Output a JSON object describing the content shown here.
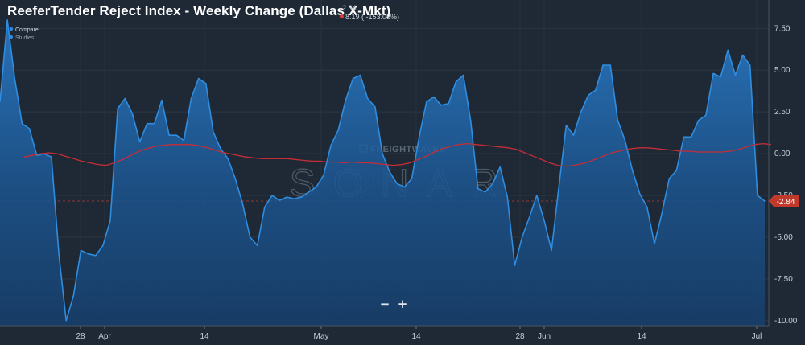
{
  "title": "ReeferTender Reject Index - Weekly Change (Dallas X-Mkt)",
  "readout": {
    "value": "-2.84",
    "change": "8.19 ( -153.08%)"
  },
  "legend": {
    "compare_label": "Compare...",
    "studies_label": "Studies"
  },
  "zoom": {
    "out_label": "−",
    "in_label": "+"
  },
  "watermark": {
    "brand": "FREIGHTWAVES",
    "product": "SONAR"
  },
  "last_value_badge": "-2.84",
  "colors": {
    "background": "#1f2935",
    "series": "#2e8de0",
    "moving_average": "#c62d36",
    "badge": "#c0392b"
  },
  "chart_data": {
    "type": "area",
    "title": "ReeferTender Reject Index - Weekly Change (Dallas X-Mkt)",
    "x_ticks": [
      "28",
      "Apr",
      "14",
      "May",
      "14",
      "28",
      "Jun",
      "14",
      "Jul"
    ],
    "y_ticks": [
      "7.50",
      "5.00",
      "2.50",
      "0.00",
      "-2.50",
      "-5.00",
      "-7.50",
      "-10.00"
    ],
    "y_tick_values": [
      7.5,
      5,
      2.5,
      0,
      -2.5,
      -5,
      -7.5,
      -10
    ],
    "ylim": [
      -10.3,
      9.2
    ],
    "grid": true,
    "series": [
      {
        "kind": "area",
        "values": [
          3.1,
          8.0,
          4.5,
          1.8,
          1.5,
          -0.1,
          0.0,
          -0.2,
          -6.0,
          -10.0,
          -8.5,
          -5.8,
          -6.0,
          -6.1,
          -5.5,
          -4.0,
          2.7,
          3.3,
          2.4,
          0.7,
          1.8,
          1.8,
          3.2,
          1.1,
          1.1,
          0.8,
          3.3,
          4.5,
          4.2,
          1.3,
          0.3,
          -0.3,
          -1.5,
          -3.0,
          -5.0,
          -5.5,
          -3.2,
          -2.5,
          -2.8,
          -2.6,
          -2.7,
          -2.6,
          -2.3,
          -2.0,
          -1.3,
          0.5,
          1.4,
          3.2,
          4.5,
          4.7,
          3.3,
          2.8,
          0.0,
          -1.1,
          -1.8,
          -2.0,
          -1.5,
          1.0,
          3.1,
          3.4,
          2.9,
          3.0,
          4.3,
          4.7,
          2.0,
          -2.1,
          -2.3,
          -1.8,
          -0.8,
          -2.6,
          -6.7,
          -5.0,
          -3.8,
          -2.5,
          -4.0,
          -5.8,
          -2.0,
          1.7,
          1.1,
          2.5,
          3.5,
          3.8,
          5.3,
          5.3,
          2.0,
          0.8,
          -1.0,
          -2.4,
          -3.2,
          -5.4,
          -3.6,
          -1.5,
          -1.0,
          1.0,
          1.0,
          2.0,
          2.3,
          4.8,
          4.6,
          6.2,
          4.7,
          5.9,
          5.3,
          -2.5,
          -2.84
        ]
      },
      {
        "kind": "line",
        "values": [
          -0.2,
          -0.1,
          0.0,
          0.05,
          0.0,
          -0.15,
          -0.3,
          -0.45,
          -0.55,
          -0.65,
          -0.7,
          -0.55,
          -0.35,
          -0.1,
          0.15,
          0.3,
          0.45,
          0.5,
          0.55,
          0.55,
          0.55,
          0.5,
          0.4,
          0.25,
          0.1,
          0.0,
          -0.1,
          -0.2,
          -0.25,
          -0.3,
          -0.3,
          -0.3,
          -0.3,
          -0.35,
          -0.4,
          -0.45,
          -0.45,
          -0.5,
          -0.5,
          -0.55,
          -0.5,
          -0.55,
          -0.55,
          -0.6,
          -0.65,
          -0.7,
          -0.65,
          -0.55,
          -0.35,
          -0.15,
          0.1,
          0.3,
          0.45,
          0.55,
          0.6,
          0.55,
          0.5,
          0.45,
          0.4,
          0.35,
          0.25,
          0.05,
          -0.15,
          -0.35,
          -0.55,
          -0.7,
          -0.75,
          -0.7,
          -0.6,
          -0.45,
          -0.25,
          -0.05,
          0.1,
          0.2,
          0.3,
          0.35,
          0.35,
          0.3,
          0.25,
          0.2,
          0.15,
          0.15,
          0.1,
          0.1,
          0.1,
          0.1,
          0.15,
          0.25,
          0.4,
          0.55,
          0.6,
          0.55
        ]
      }
    ]
  }
}
